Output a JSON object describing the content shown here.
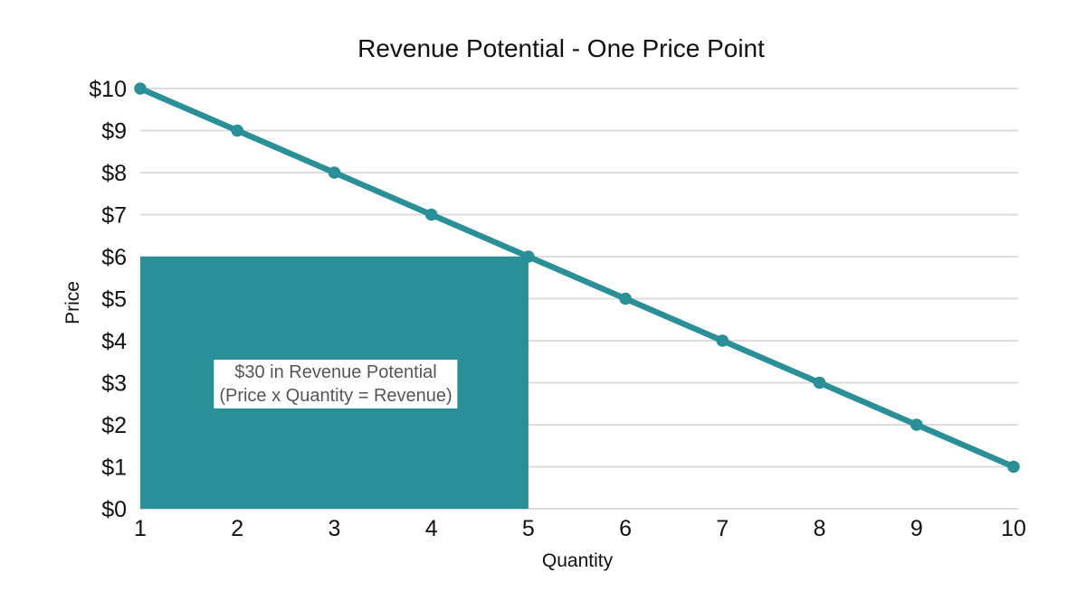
{
  "colors": {
    "series": "#2A8F96",
    "highlight_fill": "#2A8F96",
    "grid": "#DCDCDC",
    "text": "#111111",
    "annotation_text": "#55565A",
    "annotation_bg": "#FFFFFF",
    "background": "#FFFFFF"
  },
  "chart_data": {
    "type": "line",
    "title": "Revenue Potential - One Price Point",
    "xlabel": "Quantity",
    "ylabel": "Price",
    "x": [
      1,
      2,
      3,
      4,
      5,
      6,
      7,
      8,
      9,
      10
    ],
    "y": [
      10,
      9,
      8,
      7,
      6,
      5,
      4,
      3,
      2,
      1
    ],
    "x_tick_values": [
      1,
      2,
      3,
      4,
      5,
      6,
      7,
      8,
      9,
      10
    ],
    "x_tick_labels": [
      "1",
      "2",
      "3",
      "4",
      "5",
      "6",
      "7",
      "8",
      "9",
      "10"
    ],
    "y_tick_values": [
      0,
      1,
      2,
      3,
      4,
      5,
      6,
      7,
      8,
      9,
      10
    ],
    "y_tick_labels": [
      "$0",
      "$1",
      "$2",
      "$3",
      "$4",
      "$5",
      "$6",
      "$7",
      "$8",
      "$9",
      "$10"
    ],
    "xlim": [
      1,
      10
    ],
    "ylim": [
      0,
      10
    ],
    "grid": "horizontal",
    "legend": "none",
    "marker": "circle",
    "highlight_rect": {
      "x_start": 1,
      "x_end": 5,
      "y_start": 0,
      "y_end": 6,
      "revenue": 30
    },
    "annotation": {
      "text_lines": [
        "$30 in Revenue Potential",
        "(Price x Quantity = Revenue)"
      ],
      "center_x": 3,
      "center_y": 3
    }
  }
}
